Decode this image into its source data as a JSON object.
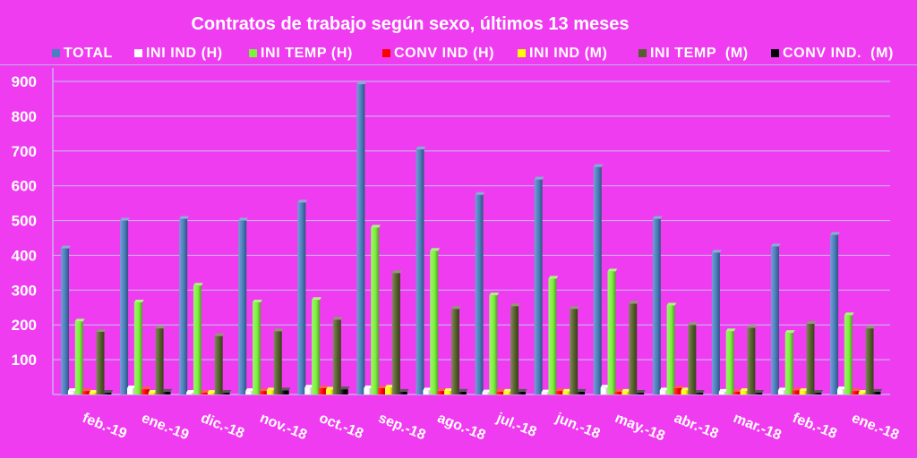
{
  "theme": {
    "background": "#F03CF0",
    "text": "#FFFFFF"
  },
  "chart_data": {
    "type": "bar",
    "three_d": true,
    "title": "Contratos de trabajo según sexo, últimos 13 meses",
    "categories": [
      "feb.-19",
      "ene.-19",
      "dic.-18",
      "nov.-18",
      "oct.-18",
      "sep.-18",
      "ago.-18",
      "jul.-18",
      "jun.-18",
      "may.-18",
      "abr.-18",
      "mar.-18",
      "feb.-18",
      "ene.-18"
    ],
    "ylim": [
      0,
      900
    ],
    "yticks": [
      100,
      200,
      300,
      400,
      500,
      600,
      700,
      800,
      900
    ],
    "grid": true,
    "legend": "top",
    "series": [
      {
        "name": "TOTAL",
        "color": "#4A7EBF",
        "values": [
          420,
          500,
          505,
          500,
          552,
          892,
          705,
          574,
          618,
          654,
          505,
          408,
          426,
          459
        ]
      },
      {
        "name": "INI IND (H)",
        "color": "#FFFFFF",
        "values": [
          10,
          18,
          5,
          10,
          20,
          18,
          12,
          6,
          6,
          20,
          12,
          8,
          12,
          15
        ]
      },
      {
        "name": "INI TEMP (H)",
        "color": "#7CF23C",
        "values": [
          210,
          265,
          313,
          265,
          272,
          480,
          413,
          285,
          333,
          354,
          256,
          182,
          177,
          228
        ]
      },
      {
        "name": "CONV IND (H)",
        "color": "#FF0000",
        "values": [
          10,
          15,
          5,
          10,
          18,
          18,
          10,
          8,
          10,
          8,
          18,
          8,
          12,
          10
        ]
      },
      {
        "name": "INI IND (M)",
        "color": "#FFFF00",
        "values": [
          5,
          5,
          5,
          12,
          14,
          20,
          10,
          8,
          8,
          8,
          12,
          10,
          10,
          5
        ]
      },
      {
        "name": "INI TEMP  (M)",
        "color": "#565F2A",
        "values": [
          180,
          190,
          168,
          182,
          215,
          349,
          246,
          254,
          246,
          261,
          200,
          192,
          203,
          190
        ]
      },
      {
        "name": "CONV IND.  (M)",
        "color": "#000000",
        "values": [
          5,
          8,
          5,
          12,
          15,
          8,
          8,
          8,
          8,
          5,
          5,
          5,
          5,
          8
        ]
      }
    ]
  }
}
